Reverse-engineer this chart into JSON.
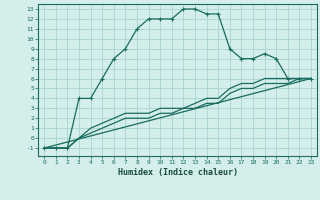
{
  "title": "",
  "xlabel": "Humidex (Indice chaleur)",
  "bg_color": "#d4eeeb",
  "grid_color": "#a8d4cf",
  "line_color": "#1a6b60",
  "xlim": [
    -0.5,
    23.5
  ],
  "ylim": [
    -1.8,
    13.5
  ],
  "xticks": [
    0,
    1,
    2,
    3,
    4,
    5,
    6,
    7,
    8,
    9,
    10,
    11,
    12,
    13,
    14,
    15,
    16,
    17,
    18,
    19,
    20,
    21,
    22,
    23
  ],
  "yticks": [
    -1,
    0,
    1,
    2,
    3,
    4,
    5,
    6,
    7,
    8,
    9,
    10,
    11,
    12,
    13
  ],
  "line1_x": [
    0,
    1,
    2,
    3,
    4,
    5,
    6,
    7,
    8,
    9,
    10,
    11,
    12,
    13,
    14,
    15,
    16,
    17,
    18,
    19,
    20,
    21,
    22,
    23
  ],
  "line1_y": [
    -1,
    -1,
    -1,
    4,
    4,
    6,
    8,
    9,
    11,
    12,
    12,
    12,
    13,
    13,
    12.5,
    12.5,
    9,
    8,
    8,
    8.5,
    8,
    6,
    6,
    6
  ],
  "line2_x": [
    0,
    1,
    2,
    3,
    4,
    5,
    6,
    7,
    8,
    9,
    10,
    11,
    12,
    13,
    14,
    15,
    16,
    17,
    18,
    19,
    20,
    21,
    22,
    23
  ],
  "line2_y": [
    -1,
    -1,
    -1,
    0,
    1,
    1.5,
    2,
    2.5,
    2.5,
    2.5,
    3,
    3,
    3,
    3.5,
    4,
    4,
    5,
    5.5,
    5.5,
    6,
    6,
    6,
    6,
    6
  ],
  "line3_x": [
    0,
    1,
    2,
    3,
    4,
    5,
    6,
    7,
    8,
    9,
    10,
    11,
    12,
    13,
    14,
    15,
    16,
    17,
    18,
    19,
    20,
    21,
    22,
    23
  ],
  "line3_y": [
    -1,
    -1,
    -1,
    0,
    0.5,
    1,
    1.5,
    2,
    2,
    2,
    2.5,
    2.5,
    3,
    3,
    3.5,
    3.5,
    4.5,
    5,
    5,
    5.5,
    5.5,
    5.5,
    6,
    6
  ],
  "line4_x": [
    0,
    23
  ],
  "line4_y": [
    -1,
    6
  ]
}
